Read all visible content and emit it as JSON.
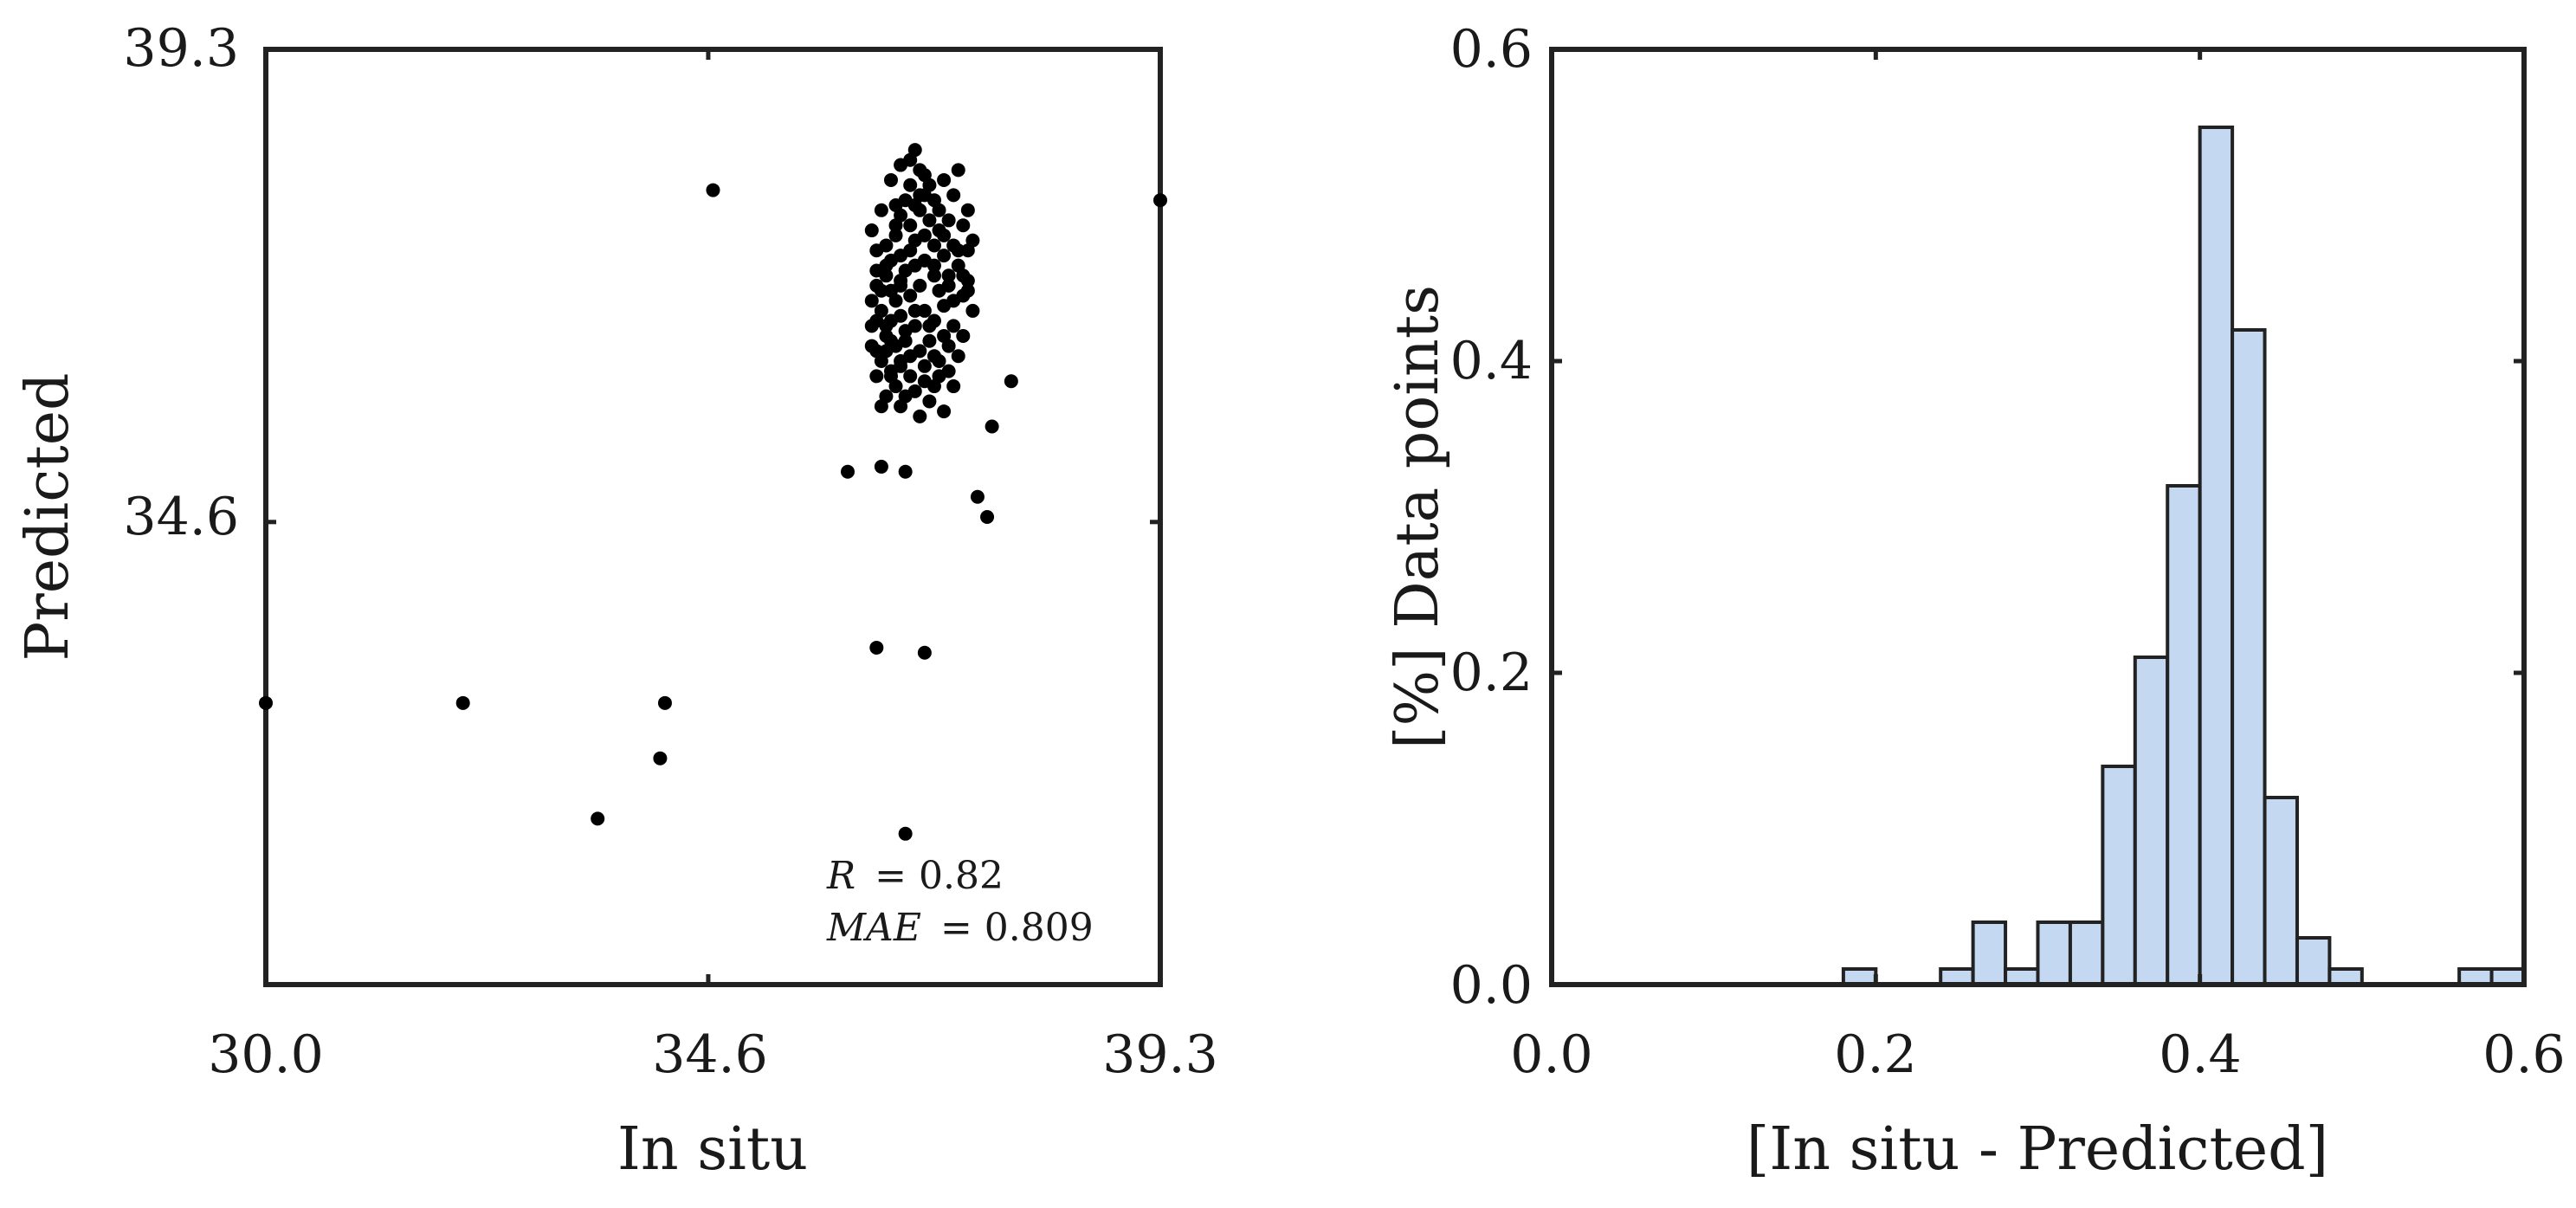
{
  "chart_data": [
    {
      "type": "scatter",
      "xlabel": "In situ",
      "ylabel": "Predicted",
      "xlim": [
        30.0,
        39.3
      ],
      "ylim": [
        30.0,
        39.3
      ],
      "xticks": [
        "30.0",
        "34.6",
        "39.3"
      ],
      "yticks": [
        "34.6",
        "39.3"
      ],
      "annotation": {
        "r_label": "R",
        "r_value": "= 0.82",
        "mae_label": "MAE",
        "mae_value": "= 0.809"
      },
      "marker_color": "#000000",
      "grid": false,
      "series": [
        {
          "points": [
            [
              30.0,
              32.8
            ],
            [
              32.05,
              32.8
            ],
            [
              33.45,
              31.65
            ],
            [
              34.1,
              32.25
            ],
            [
              34.15,
              32.8
            ],
            [
              34.65,
              37.9
            ],
            [
              39.3,
              37.8
            ],
            [
              36.65,
              31.5
            ],
            [
              36.35,
              33.35
            ],
            [
              36.85,
              33.3
            ],
            [
              36.05,
              35.1
            ],
            [
              36.4,
              35.15
            ],
            [
              36.65,
              35.1
            ],
            [
              37.4,
              34.85
            ],
            [
              37.5,
              34.65
            ],
            [
              37.75,
              36.0
            ],
            [
              37.55,
              35.55
            ],
            [
              36.4,
              37.7
            ],
            [
              36.5,
              38.0
            ],
            [
              36.6,
              38.15
            ],
            [
              36.7,
              38.2
            ],
            [
              36.75,
              38.3
            ],
            [
              36.65,
              37.8
            ],
            [
              36.8,
              37.85
            ],
            [
              36.9,
              37.95
            ],
            [
              36.85,
              38.05
            ],
            [
              37.05,
              38.0
            ],
            [
              37.15,
              37.85
            ],
            [
              37.2,
              38.1
            ],
            [
              37.3,
              37.7
            ],
            [
              37.1,
              37.6
            ],
            [
              37.35,
              37.4
            ],
            [
              37.0,
              37.5
            ],
            [
              36.3,
              37.5
            ],
            [
              36.35,
              37.3
            ],
            [
              36.45,
              37.35
            ],
            [
              36.55,
              37.45
            ],
            [
              36.6,
              37.25
            ],
            [
              36.7,
              37.3
            ],
            [
              36.75,
              37.15
            ],
            [
              36.85,
              37.2
            ],
            [
              36.95,
              37.35
            ],
            [
              37.05,
              37.25
            ],
            [
              37.2,
              37.15
            ],
            [
              37.3,
              37.0
            ],
            [
              37.25,
              36.85
            ],
            [
              37.35,
              36.7
            ],
            [
              37.1,
              36.95
            ],
            [
              36.95,
              37.05
            ],
            [
              36.8,
              36.95
            ],
            [
              36.7,
              36.85
            ],
            [
              36.6,
              37.0
            ],
            [
              36.5,
              36.9
            ],
            [
              36.45,
              37.05
            ],
            [
              36.35,
              36.95
            ],
            [
              36.3,
              36.8
            ],
            [
              36.4,
              36.7
            ],
            [
              36.5,
              36.6
            ],
            [
              36.6,
              36.65
            ],
            [
              36.75,
              36.55
            ],
            [
              36.85,
              36.7
            ],
            [
              36.95,
              36.6
            ],
            [
              37.05,
              36.75
            ],
            [
              37.15,
              36.55
            ],
            [
              37.25,
              36.45
            ],
            [
              37.1,
              36.35
            ],
            [
              36.9,
              36.4
            ],
            [
              36.8,
              36.3
            ],
            [
              36.65,
              36.4
            ],
            [
              36.55,
              36.35
            ],
            [
              36.45,
              36.45
            ],
            [
              36.35,
              36.3
            ],
            [
              36.3,
              36.55
            ],
            [
              36.4,
              36.2
            ],
            [
              36.5,
              36.1
            ],
            [
              36.6,
              36.2
            ],
            [
              36.7,
              36.05
            ],
            [
              36.85,
              36.15
            ],
            [
              37.0,
              36.2
            ],
            [
              37.1,
              36.1
            ],
            [
              37.2,
              36.25
            ],
            [
              36.95,
              35.95
            ],
            [
              36.75,
              35.9
            ],
            [
              36.55,
              35.95
            ],
            [
              36.45,
              35.85
            ],
            [
              36.35,
              36.05
            ],
            [
              36.6,
              35.75
            ],
            [
              36.9,
              35.8
            ],
            [
              37.05,
              35.7
            ],
            [
              36.8,
              35.65
            ],
            [
              36.65,
              36.5
            ],
            [
              36.55,
              36.8
            ],
            [
              36.45,
              37.15
            ],
            [
              36.75,
              37.4
            ],
            [
              36.9,
              37.6
            ],
            [
              37.0,
              37.7
            ],
            [
              36.8,
              37.7
            ],
            [
              36.7,
              37.55
            ],
            [
              36.6,
              37.65
            ],
            [
              36.5,
              37.2
            ],
            [
              36.35,
              37.1
            ],
            [
              37.25,
              37.55
            ],
            [
              37.3,
              37.3
            ],
            [
              37.15,
              36.8
            ],
            [
              37.05,
              36.45
            ],
            [
              36.95,
              36.25
            ],
            [
              36.75,
              36.7
            ],
            [
              36.6,
              36.95
            ],
            [
              36.45,
              36.55
            ],
            [
              36.3,
              36.35
            ],
            [
              36.5,
              36.05
            ],
            [
              36.65,
              35.85
            ],
            [
              36.85,
              36.0
            ],
            [
              37.0,
              36.05
            ],
            [
              37.15,
              35.95
            ],
            [
              36.4,
              35.75
            ],
            [
              36.55,
              37.55
            ],
            [
              36.7,
              37.95
            ],
            [
              36.8,
              38.1
            ],
            [
              36.95,
              37.8
            ],
            [
              37.05,
              37.45
            ],
            [
              37.2,
              37.3
            ],
            [
              37.3,
              36.9
            ],
            [
              36.85,
              37.45
            ],
            [
              36.65,
              37.1
            ],
            [
              36.35,
              36.6
            ],
            [
              36.5,
              36.4
            ],
            [
              36.7,
              36.25
            ],
            [
              36.9,
              36.55
            ],
            [
              37.0,
              36.9
            ],
            [
              37.1,
              37.05
            ],
            [
              36.6,
              36.15
            ],
            [
              36.4,
              36.9
            ],
            [
              36.55,
              37.75
            ],
            [
              36.75,
              37.75
            ],
            [
              36.85,
              37.85
            ],
            [
              36.95,
              37.15
            ],
            [
              37.15,
              37.35
            ],
            [
              37.25,
              37.05
            ],
            [
              36.45,
              36.3
            ]
          ]
        }
      ]
    },
    {
      "type": "bar",
      "subtype": "histogram",
      "xlabel": "[In situ - Predicted]",
      "ylabel": "[%] Data points",
      "xlim": [
        0.0,
        0.6
      ],
      "ylim": [
        0.0,
        0.6
      ],
      "xticks": [
        "0.0",
        "0.2",
        "0.4",
        "0.6"
      ],
      "yticks": [
        "0.0",
        "0.2",
        "0.4",
        "0.6"
      ],
      "bin_width": 0.02,
      "bar_color": "#c4d9f1",
      "edge_color": "#222222",
      "grid": false,
      "bins": [
        [
          0.18,
          0.01
        ],
        [
          0.2,
          0.0
        ],
        [
          0.22,
          0.0
        ],
        [
          0.24,
          0.01
        ],
        [
          0.26,
          0.04
        ],
        [
          0.28,
          0.01
        ],
        [
          0.3,
          0.04
        ],
        [
          0.32,
          0.04
        ],
        [
          0.34,
          0.14
        ],
        [
          0.36,
          0.21
        ],
        [
          0.38,
          0.32
        ],
        [
          0.4,
          0.55
        ],
        [
          0.42,
          0.42
        ],
        [
          0.44,
          0.12
        ],
        [
          0.46,
          0.03
        ],
        [
          0.48,
          0.01
        ],
        [
          0.56,
          0.01
        ],
        [
          0.58,
          0.01
        ]
      ]
    }
  ]
}
